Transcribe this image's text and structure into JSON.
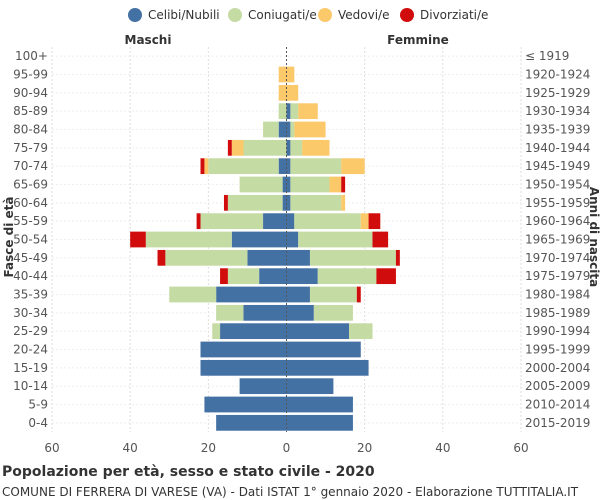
{
  "chart_data": {
    "type": "bar",
    "orientation": "horizontal",
    "layout": "population-pyramid",
    "title": "Popolazione per età, sesso e stato civile - 2020",
    "subtitle": "COMUNE DI FERRERA DI VARESE (VA) - Dati ISTAT 1° gennaio 2020 - Elaborazione TUTTITALIA.IT",
    "left_label": "Maschi",
    "right_label": "Femmine",
    "ylabel_left": "Fasce di età",
    "ylabel_right": "Anni di nascita",
    "xlim": [
      -60,
      60
    ],
    "xticks": [
      -60,
      -40,
      -20,
      0,
      20,
      40,
      60
    ],
    "xtick_labels": [
      "60",
      "40",
      "20",
      "0",
      "20",
      "40",
      "60"
    ],
    "age_groups": [
      "100+",
      "95-99",
      "90-94",
      "85-89",
      "80-84",
      "75-79",
      "70-74",
      "65-69",
      "60-64",
      "55-59",
      "50-54",
      "45-49",
      "40-44",
      "35-39",
      "30-34",
      "25-29",
      "20-24",
      "15-19",
      "10-14",
      "5-9",
      "0-4"
    ],
    "birth_years": [
      "≤ 1919",
      "1920-1924",
      "1925-1929",
      "1930-1934",
      "1935-1939",
      "1940-1944",
      "1945-1949",
      "1950-1954",
      "1955-1959",
      "1960-1964",
      "1965-1969",
      "1970-1974",
      "1975-1979",
      "1980-1984",
      "1985-1989",
      "1990-1994",
      "1995-1999",
      "2000-2004",
      "2005-2009",
      "2010-2014",
      "2015-2019"
    ],
    "series": [
      {
        "name": "Celibi/Nubili",
        "color": "#4471a3",
        "males": [
          0,
          0,
          0,
          0,
          2,
          0,
          2,
          1,
          1,
          6,
          14,
          10,
          7,
          18,
          11,
          17,
          22,
          22,
          12,
          21,
          18
        ],
        "females": [
          0,
          0,
          0,
          1,
          1,
          1,
          1,
          1,
          1,
          2,
          3,
          6,
          8,
          6,
          7,
          16,
          19,
          21,
          12,
          17,
          17
        ]
      },
      {
        "name": "Coniugati/e",
        "color": "#c5dba4",
        "males": [
          0,
          0,
          0,
          2,
          4,
          11,
          18,
          11,
          14,
          16,
          22,
          21,
          8,
          12,
          7,
          2,
          0,
          0,
          0,
          0,
          0
        ],
        "females": [
          0,
          0,
          0,
          2,
          1,
          3,
          13,
          10,
          13,
          17,
          19,
          22,
          15,
          12,
          10,
          6,
          0,
          0,
          0,
          0,
          0
        ]
      },
      {
        "name": "Vedovi/e",
        "color": "#fbc96a",
        "males": [
          0,
          2,
          2,
          0,
          0,
          3,
          1,
          0,
          0,
          0,
          0,
          0,
          0,
          0,
          0,
          0,
          0,
          0,
          0,
          0,
          0
        ],
        "females": [
          0,
          2,
          3,
          5,
          8,
          7,
          6,
          3,
          1,
          2,
          0,
          0,
          0,
          0,
          0,
          0,
          0,
          0,
          0,
          0,
          0
        ]
      },
      {
        "name": "Divorziati/e",
        "color": "#d10c0c",
        "males": [
          0,
          0,
          0,
          0,
          0,
          1,
          1,
          0,
          1,
          1,
          4,
          2,
          2,
          0,
          0,
          0,
          0,
          0,
          0,
          0,
          0
        ],
        "females": [
          0,
          0,
          0,
          0,
          0,
          0,
          0,
          1,
          0,
          3,
          4,
          1,
          5,
          1,
          0,
          0,
          0,
          0,
          0,
          0,
          0
        ]
      }
    ]
  }
}
